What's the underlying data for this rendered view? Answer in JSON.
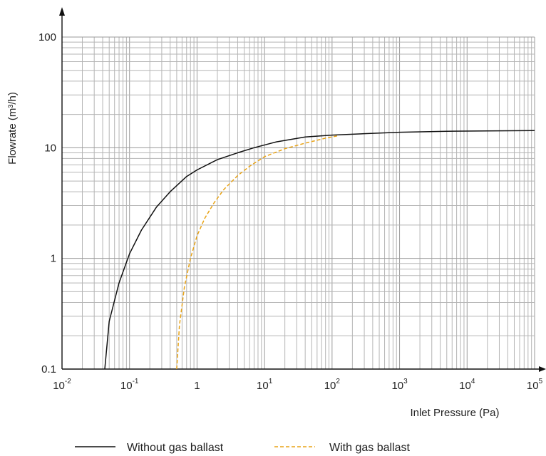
{
  "chart_data": {
    "type": "line",
    "title": "",
    "xlabel": "Inlet Pressure (Pa)",
    "ylabel": "Flowrate (m³/h)",
    "x_scale": "log",
    "y_scale": "log",
    "xlim": [
      0.01,
      100000
    ],
    "ylim": [
      0.1,
      100
    ],
    "grid": true,
    "legend_position": "bottom",
    "x_ticks": [
      {
        "value": 0.01,
        "base": "10",
        "exp": "-2"
      },
      {
        "value": 0.1,
        "base": "10",
        "exp": "-1"
      },
      {
        "value": 1,
        "base": "1",
        "exp": ""
      },
      {
        "value": 10,
        "base": "10",
        "exp": "1"
      },
      {
        "value": 100,
        "base": "10",
        "exp": "2"
      },
      {
        "value": 1000,
        "base": "10",
        "exp": "3"
      },
      {
        "value": 10000,
        "base": "10",
        "exp": "4"
      },
      {
        "value": 100000,
        "base": "10",
        "exp": "5"
      }
    ],
    "y_ticks": [
      {
        "value": 0.1,
        "label": "0.1"
      },
      {
        "value": 1,
        "label": "1"
      },
      {
        "value": 10,
        "label": "10"
      },
      {
        "value": 100,
        "label": "100"
      }
    ],
    "series": [
      {
        "name": "Without gas ballast",
        "color": "#111111",
        "dash": "solid",
        "points": [
          [
            0.043,
            0.1
          ],
          [
            0.05,
            0.27
          ],
          [
            0.07,
            0.6
          ],
          [
            0.1,
            1.1
          ],
          [
            0.15,
            1.8
          ],
          [
            0.25,
            2.9
          ],
          [
            0.4,
            4.0
          ],
          [
            0.7,
            5.5
          ],
          [
            1.0,
            6.3
          ],
          [
            2.0,
            7.8
          ],
          [
            4.0,
            9.0
          ],
          [
            7.0,
            10.0
          ],
          [
            15,
            11.3
          ],
          [
            40,
            12.5
          ],
          [
            100,
            13.0
          ],
          [
            300,
            13.4
          ],
          [
            1000,
            13.8
          ],
          [
            5000,
            14.1
          ],
          [
            20000,
            14.2
          ],
          [
            100000,
            14.3
          ]
        ]
      },
      {
        "name": "With gas ballast",
        "color": "#E8A317",
        "dash": "dashed",
        "points": [
          [
            0.5,
            0.1
          ],
          [
            0.55,
            0.25
          ],
          [
            0.65,
            0.55
          ],
          [
            0.8,
            1.0
          ],
          [
            1.0,
            1.6
          ],
          [
            1.3,
            2.3
          ],
          [
            1.8,
            3.2
          ],
          [
            2.5,
            4.2
          ],
          [
            4.0,
            5.6
          ],
          [
            6.0,
            6.8
          ],
          [
            10,
            8.3
          ],
          [
            20,
            9.8
          ],
          [
            40,
            11.0
          ],
          [
            80,
            12.2
          ],
          [
            120,
            12.8
          ]
        ]
      }
    ]
  }
}
